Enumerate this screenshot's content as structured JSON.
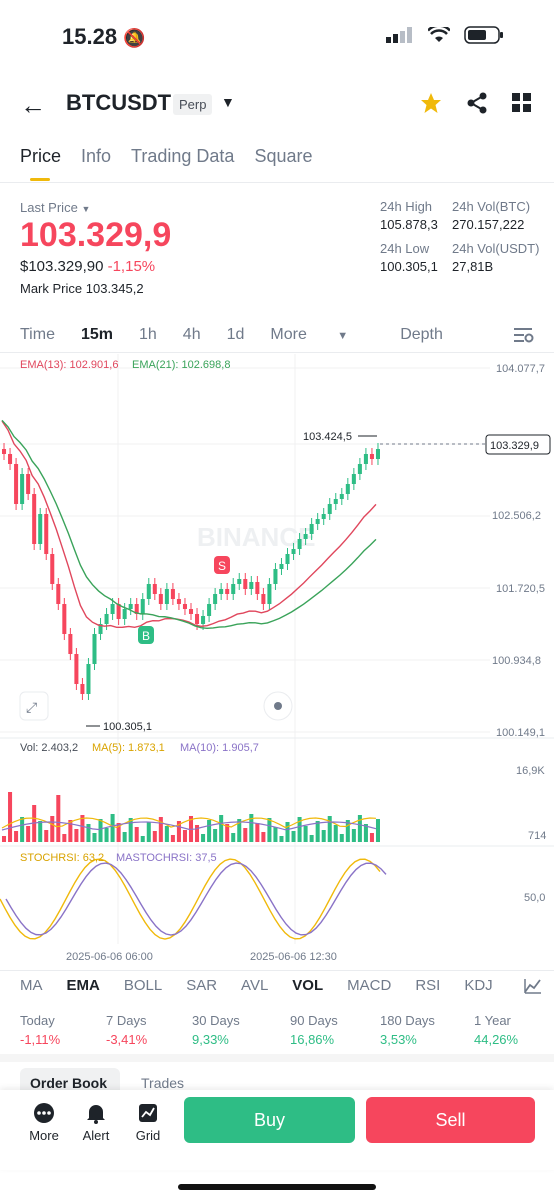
{
  "status": {
    "time": "15.28"
  },
  "header": {
    "pair": "BTCUSDT",
    "badge": "Perp"
  },
  "tabs": [
    "Price",
    "Info",
    "Trading Data",
    "Square"
  ],
  "summary": {
    "last_price_label": "Last Price",
    "last_price": "103.329,9",
    "usd_price": "$103.329,90",
    "change": "-1,15%",
    "mark_label": "Mark Price",
    "mark_price": "103.345,2",
    "high_label": "24h High",
    "high": "105.878,3",
    "vol_btc_label": "24h Vol(BTC)",
    "vol_btc": "270.157,222",
    "low_label": "24h Low",
    "low": "100.305,1",
    "vol_usdt_label": "24h Vol(USDT)",
    "vol_usdt": "27,81B"
  },
  "timeframes": [
    "Time",
    "15m",
    "1h",
    "4h",
    "1d",
    "More",
    "Depth"
  ],
  "chart": {
    "ema13": "EMA(13): 102.901,6",
    "ema21": "EMA(21): 102.698,8",
    "price_ticks": [
      "104.077,7",
      "102.506,2",
      "101.720,5",
      "100.934,8",
      "100.149,1"
    ],
    "current_tag": "103.329,9",
    "high_marker": "103.424,5",
    "low_marker": "100.305,1",
    "watermark": "BINANCE",
    "vol": "Vol: 2.403,2",
    "ma5": "MA(5): 1.873,1",
    "ma10": "MA(10): 1.905,7",
    "vol_ticks": [
      "16,9K",
      "714"
    ],
    "stoch": "STOCHRSI: 63,2",
    "mastoch": "MASTOCHRSI: 37,5",
    "stoch_tick": "50,0",
    "time_ticks": [
      "2025-06-06 06:00",
      "2025-06-06 12:30"
    ],
    "buy_marker": "B",
    "sell_marker": "S"
  },
  "indicators": [
    "MA",
    "EMA",
    "BOLL",
    "SAR",
    "AVL",
    "VOL",
    "MACD",
    "RSI",
    "KDJ"
  ],
  "performance": [
    {
      "label": "Today",
      "value": "-1,11%"
    },
    {
      "label": "7 Days",
      "value": "-3,41%"
    },
    {
      "label": "30 Days",
      "value": "9,33%"
    },
    {
      "label": "90 Days",
      "value": "16,86%"
    },
    {
      "label": "180 Days",
      "value": "3,53%"
    },
    {
      "label": "1 Year",
      "value": "44,26%"
    }
  ],
  "orders": {
    "book": "Order Book",
    "trades": "Trades"
  },
  "bottom": {
    "more": "More",
    "alert": "Alert",
    "grid": "Grid",
    "buy": "Buy",
    "sell": "Sell"
  },
  "colors": {
    "up": "#2ebd85",
    "down": "#f6465d",
    "accent": "#f0b90b"
  }
}
